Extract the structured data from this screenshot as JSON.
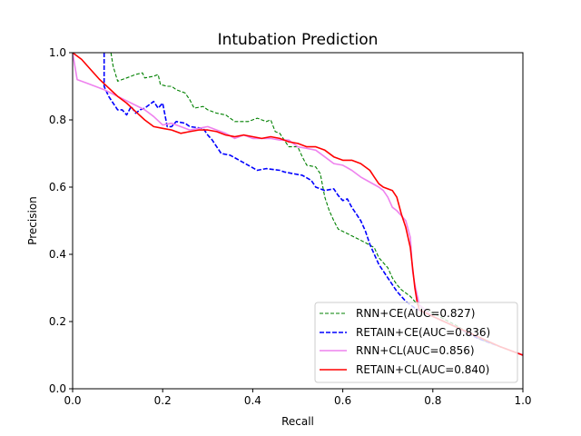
{
  "chart_data": {
    "type": "line",
    "title": "Intubation Prediction",
    "xlabel": "Recall",
    "ylabel": "Precision",
    "xlim": [
      0,
      1
    ],
    "ylim": [
      0,
      1
    ],
    "xticks": [
      "0.0",
      "0.2",
      "0.4",
      "0.6",
      "0.8",
      "1.0"
    ],
    "yticks": [
      "0.0",
      "0.2",
      "0.4",
      "0.6",
      "0.8",
      "1.0"
    ],
    "grid": false,
    "legend_position": "bottom-right",
    "series": [
      {
        "name": "RNN+CE(AUC=0.827)",
        "color": "#008000",
        "style": "dashed-thin",
        "points": [
          [
            0.085,
            1.0
          ],
          [
            0.09,
            0.96
          ],
          [
            0.1,
            0.915
          ],
          [
            0.12,
            0.925
          ],
          [
            0.14,
            0.935
          ],
          [
            0.155,
            0.94
          ],
          [
            0.16,
            0.925
          ],
          [
            0.18,
            0.93
          ],
          [
            0.19,
            0.935
          ],
          [
            0.195,
            0.905
          ],
          [
            0.21,
            0.9
          ],
          [
            0.22,
            0.9
          ],
          [
            0.23,
            0.89
          ],
          [
            0.25,
            0.88
          ],
          [
            0.26,
            0.86
          ],
          [
            0.27,
            0.835
          ],
          [
            0.29,
            0.84
          ],
          [
            0.3,
            0.83
          ],
          [
            0.32,
            0.82
          ],
          [
            0.34,
            0.815
          ],
          [
            0.36,
            0.795
          ],
          [
            0.39,
            0.795
          ],
          [
            0.41,
            0.805
          ],
          [
            0.43,
            0.795
          ],
          [
            0.44,
            0.8
          ],
          [
            0.45,
            0.765
          ],
          [
            0.46,
            0.76
          ],
          [
            0.47,
            0.74
          ],
          [
            0.48,
            0.72
          ],
          [
            0.5,
            0.72
          ],
          [
            0.51,
            0.69
          ],
          [
            0.52,
            0.665
          ],
          [
            0.54,
            0.66
          ],
          [
            0.55,
            0.64
          ],
          [
            0.56,
            0.57
          ],
          [
            0.57,
            0.53
          ],
          [
            0.58,
            0.5
          ],
          [
            0.59,
            0.475
          ],
          [
            0.62,
            0.455
          ],
          [
            0.65,
            0.435
          ],
          [
            0.67,
            0.42
          ],
          [
            0.68,
            0.39
          ],
          [
            0.7,
            0.36
          ],
          [
            0.71,
            0.33
          ],
          [
            0.72,
            0.31
          ],
          [
            0.73,
            0.295
          ],
          [
            0.75,
            0.275
          ],
          [
            0.77,
            0.245
          ],
          [
            0.8,
            0.225
          ],
          [
            0.85,
            0.19
          ],
          [
            0.9,
            0.15
          ],
          [
            0.95,
            0.125
          ],
          [
            1.0,
            0.1
          ]
        ]
      },
      {
        "name": "RETAIN+CE(AUC=0.836)",
        "color": "#0000ff",
        "style": "dashed",
        "points": [
          [
            0.07,
            1.0
          ],
          [
            0.07,
            0.9
          ],
          [
            0.08,
            0.87
          ],
          [
            0.09,
            0.85
          ],
          [
            0.1,
            0.83
          ],
          [
            0.11,
            0.83
          ],
          [
            0.12,
            0.815
          ],
          [
            0.13,
            0.84
          ],
          [
            0.14,
            0.82
          ],
          [
            0.15,
            0.83
          ],
          [
            0.16,
            0.835
          ],
          [
            0.17,
            0.845
          ],
          [
            0.18,
            0.855
          ],
          [
            0.19,
            0.835
          ],
          [
            0.2,
            0.85
          ],
          [
            0.21,
            0.78
          ],
          [
            0.22,
            0.78
          ],
          [
            0.23,
            0.795
          ],
          [
            0.25,
            0.79
          ],
          [
            0.26,
            0.78
          ],
          [
            0.29,
            0.775
          ],
          [
            0.3,
            0.755
          ],
          [
            0.31,
            0.74
          ],
          [
            0.32,
            0.72
          ],
          [
            0.33,
            0.7
          ],
          [
            0.35,
            0.695
          ],
          [
            0.37,
            0.68
          ],
          [
            0.39,
            0.665
          ],
          [
            0.41,
            0.65
          ],
          [
            0.43,
            0.655
          ],
          [
            0.46,
            0.65
          ],
          [
            0.47,
            0.645
          ],
          [
            0.49,
            0.64
          ],
          [
            0.51,
            0.635
          ],
          [
            0.53,
            0.62
          ],
          [
            0.54,
            0.6
          ],
          [
            0.56,
            0.59
          ],
          [
            0.58,
            0.595
          ],
          [
            0.59,
            0.575
          ],
          [
            0.6,
            0.56
          ],
          [
            0.61,
            0.565
          ],
          [
            0.62,
            0.54
          ],
          [
            0.63,
            0.52
          ],
          [
            0.64,
            0.5
          ],
          [
            0.65,
            0.47
          ],
          [
            0.66,
            0.43
          ],
          [
            0.67,
            0.4
          ],
          [
            0.68,
            0.37
          ],
          [
            0.7,
            0.33
          ],
          [
            0.72,
            0.29
          ],
          [
            0.74,
            0.26
          ],
          [
            0.76,
            0.24
          ],
          [
            0.8,
            0.215
          ],
          [
            0.85,
            0.185
          ],
          [
            0.9,
            0.15
          ],
          [
            0.95,
            0.125
          ],
          [
            1.0,
            0.1
          ]
        ]
      },
      {
        "name": "RNN+CL(AUC=0.856)",
        "color": "#ee82ee",
        "style": "solid",
        "points": [
          [
            0.0,
            1.0
          ],
          [
            0.01,
            0.92
          ],
          [
            0.03,
            0.91
          ],
          [
            0.05,
            0.9
          ],
          [
            0.07,
            0.89
          ],
          [
            0.1,
            0.87
          ],
          [
            0.13,
            0.85
          ],
          [
            0.16,
            0.83
          ],
          [
            0.18,
            0.81
          ],
          [
            0.2,
            0.785
          ],
          [
            0.22,
            0.79
          ],
          [
            0.24,
            0.78
          ],
          [
            0.26,
            0.77
          ],
          [
            0.28,
            0.775
          ],
          [
            0.3,
            0.78
          ],
          [
            0.32,
            0.77
          ],
          [
            0.34,
            0.76
          ],
          [
            0.36,
            0.745
          ],
          [
            0.38,
            0.755
          ],
          [
            0.4,
            0.745
          ],
          [
            0.42,
            0.745
          ],
          [
            0.44,
            0.745
          ],
          [
            0.46,
            0.74
          ],
          [
            0.48,
            0.74
          ],
          [
            0.5,
            0.72
          ],
          [
            0.52,
            0.715
          ],
          [
            0.54,
            0.71
          ],
          [
            0.56,
            0.69
          ],
          [
            0.58,
            0.67
          ],
          [
            0.6,
            0.665
          ],
          [
            0.62,
            0.65
          ],
          [
            0.64,
            0.63
          ],
          [
            0.66,
            0.615
          ],
          [
            0.68,
            0.6
          ],
          [
            0.69,
            0.59
          ],
          [
            0.7,
            0.57
          ],
          [
            0.71,
            0.54
          ],
          [
            0.72,
            0.53
          ],
          [
            0.73,
            0.515
          ],
          [
            0.74,
            0.5
          ],
          [
            0.75,
            0.45
          ],
          [
            0.755,
            0.35
          ],
          [
            0.76,
            0.31
          ],
          [
            0.765,
            0.28
          ],
          [
            0.77,
            0.25
          ],
          [
            0.8,
            0.215
          ],
          [
            0.85,
            0.185
          ],
          [
            0.9,
            0.155
          ],
          [
            0.95,
            0.125
          ],
          [
            1.0,
            0.1
          ]
        ]
      },
      {
        "name": "RETAIN+CL(AUC=0.840)",
        "color": "#ff0000",
        "style": "solid",
        "points": [
          [
            0.0,
            1.0
          ],
          [
            0.02,
            0.98
          ],
          [
            0.04,
            0.95
          ],
          [
            0.06,
            0.92
          ],
          [
            0.08,
            0.895
          ],
          [
            0.1,
            0.87
          ],
          [
            0.12,
            0.85
          ],
          [
            0.14,
            0.825
          ],
          [
            0.16,
            0.8
          ],
          [
            0.18,
            0.78
          ],
          [
            0.2,
            0.775
          ],
          [
            0.22,
            0.77
          ],
          [
            0.24,
            0.76
          ],
          [
            0.26,
            0.765
          ],
          [
            0.28,
            0.77
          ],
          [
            0.3,
            0.77
          ],
          [
            0.32,
            0.765
          ],
          [
            0.34,
            0.755
          ],
          [
            0.36,
            0.75
          ],
          [
            0.38,
            0.755
          ],
          [
            0.4,
            0.75
          ],
          [
            0.42,
            0.745
          ],
          [
            0.44,
            0.75
          ],
          [
            0.46,
            0.745
          ],
          [
            0.48,
            0.735
          ],
          [
            0.5,
            0.73
          ],
          [
            0.52,
            0.72
          ],
          [
            0.54,
            0.72
          ],
          [
            0.56,
            0.71
          ],
          [
            0.58,
            0.69
          ],
          [
            0.6,
            0.68
          ],
          [
            0.62,
            0.68
          ],
          [
            0.64,
            0.67
          ],
          [
            0.66,
            0.65
          ],
          [
            0.67,
            0.63
          ],
          [
            0.68,
            0.61
          ],
          [
            0.69,
            0.6
          ],
          [
            0.7,
            0.595
          ],
          [
            0.71,
            0.59
          ],
          [
            0.72,
            0.57
          ],
          [
            0.73,
            0.52
          ],
          [
            0.74,
            0.48
          ],
          [
            0.75,
            0.42
          ],
          [
            0.755,
            0.36
          ],
          [
            0.76,
            0.3
          ],
          [
            0.765,
            0.26
          ],
          [
            0.77,
            0.235
          ],
          [
            0.8,
            0.215
          ],
          [
            0.85,
            0.185
          ],
          [
            0.9,
            0.155
          ],
          [
            0.95,
            0.125
          ],
          [
            1.0,
            0.1
          ]
        ]
      }
    ]
  }
}
